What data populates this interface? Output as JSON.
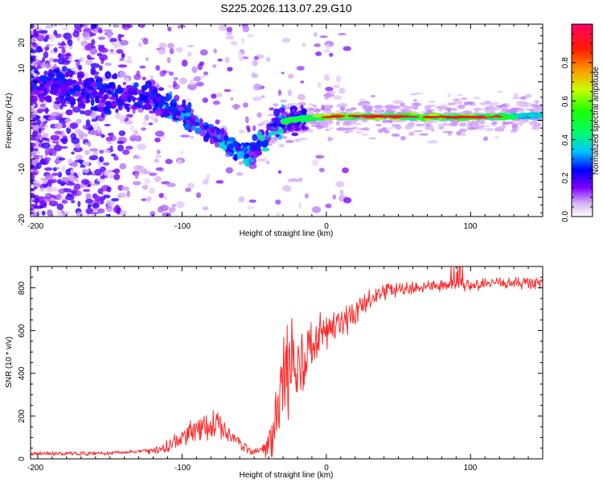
{
  "figure": {
    "title": "S225.2026.113.07.29.G10"
  },
  "chart_data": [
    {
      "type": "heatmap",
      "xlabel": "Height of straight line (km)",
      "ylabel": "Frequency (Hz)",
      "xlim": [
        -205,
        150
      ],
      "ylim": [
        -25,
        25
      ],
      "x_ticks": [
        -200,
        -100,
        0,
        100
      ],
      "x_tick_labels": [
        "-200",
        "-100",
        "0",
        "100"
      ],
      "y_ticks": [
        -20,
        -10,
        0,
        10,
        20
      ],
      "y_tick_labels": [
        "-20",
        "-10",
        "0",
        "10",
        "20"
      ],
      "band": [
        {
          "x": -205,
          "freq": 9
        },
        {
          "x": -190,
          "freq": 9
        },
        {
          "x": -170,
          "freq": 8
        },
        {
          "x": -150,
          "freq": 7
        },
        {
          "x": -125,
          "freq": 6
        },
        {
          "x": -110,
          "freq": 4
        },
        {
          "x": -95,
          "freq": 1
        },
        {
          "x": -80,
          "freq": -3
        },
        {
          "x": -65,
          "freq": -7
        },
        {
          "x": -55,
          "freq": -9
        },
        {
          "x": -45,
          "freq": -6
        },
        {
          "x": -35,
          "freq": -1
        },
        {
          "x": -25,
          "freq": 0
        },
        {
          "x": 0,
          "freq": 1
        },
        {
          "x": 50,
          "freq": 1
        },
        {
          "x": 100,
          "freq": 0.8
        },
        {
          "x": 150,
          "freq": 1.2
        }
      ],
      "colorbar": {
        "label": "Normalized spectral amplitude",
        "range": [
          0.0,
          1.0
        ],
        "ticks": [
          0.0,
          0.2,
          0.4,
          0.6,
          0.8
        ],
        "tick_labels": [
          "0.0",
          "0.2",
          "0.4",
          "0.6",
          "0.8"
        ]
      }
    },
    {
      "type": "line",
      "xlabel": "Height of straight line (km)",
      "ylabel": "SNR (10 * v/v)",
      "xlim": [
        -205,
        150
      ],
      "ylim": [
        0,
        900
      ],
      "x_ticks": [
        -200,
        -100,
        0,
        100
      ],
      "x_tick_labels": [
        "-200",
        "-100",
        "0",
        "100"
      ],
      "y_ticks": [
        0,
        200,
        400,
        600,
        800
      ],
      "y_tick_labels": [
        "0",
        "200",
        "400",
        "600",
        "800"
      ],
      "series": [
        {
          "name": "SNR",
          "color": "#ff2a2a",
          "points": [
            [
              -205,
              25
            ],
            [
              -150,
              25
            ],
            [
              -120,
              40
            ],
            [
              -110,
              60
            ],
            [
              -95,
              120
            ],
            [
              -80,
              170
            ],
            [
              -70,
              130
            ],
            [
              -60,
              70
            ],
            [
              -50,
              30
            ],
            [
              -40,
              60
            ],
            [
              -35,
              180
            ],
            [
              -30,
              380
            ],
            [
              -25,
              430
            ],
            [
              -20,
              440
            ],
            [
              -15,
              500
            ],
            [
              -10,
              520
            ],
            [
              -5,
              560
            ],
            [
              0,
              600
            ],
            [
              10,
              620
            ],
            [
              20,
              680
            ],
            [
              30,
              740
            ],
            [
              40,
              780
            ],
            [
              60,
              800
            ],
            [
              80,
              810
            ],
            [
              100,
              815
            ],
            [
              120,
              820
            ],
            [
              150,
              825
            ]
          ],
          "noise": [
            [
              -205,
              10
            ],
            [
              -130,
              10
            ],
            [
              -110,
              30
            ],
            [
              -80,
              80
            ],
            [
              -60,
              30
            ],
            [
              -45,
              20
            ],
            [
              -35,
              150
            ],
            [
              -25,
              260
            ],
            [
              -15,
              160
            ],
            [
              0,
              110
            ],
            [
              20,
              70
            ],
            [
              40,
              40
            ],
            [
              60,
              30
            ],
            [
              150,
              30
            ]
          ]
        }
      ]
    }
  ]
}
